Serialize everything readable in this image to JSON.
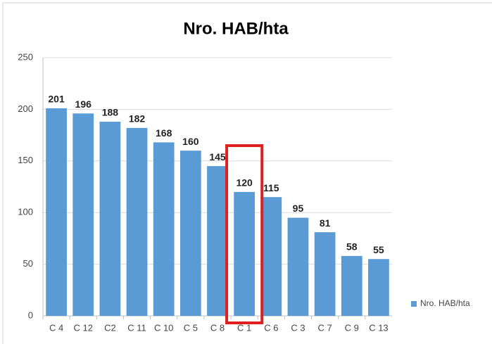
{
  "chart_data": {
    "type": "bar",
    "title": "Nro. HAB/hta",
    "categories": [
      "C 4",
      "C 12",
      "C2",
      "C 11",
      "C 10",
      "C 5",
      "C 8",
      "C 1",
      "C 6",
      "C 3",
      "C 7",
      "C 9",
      "C 13"
    ],
    "series": [
      {
        "name": "Nro. HAB/hta",
        "color": "#5b9bd5",
        "values": [
          201,
          196,
          188,
          182,
          168,
          160,
          145,
          120,
          115,
          95,
          81,
          58,
          55
        ]
      }
    ],
    "ylim": [
      0,
      250
    ],
    "yticks": [
      0,
      50,
      100,
      150,
      200,
      250
    ],
    "grid": true,
    "legend": "right",
    "highlight_category": "C 1"
  }
}
